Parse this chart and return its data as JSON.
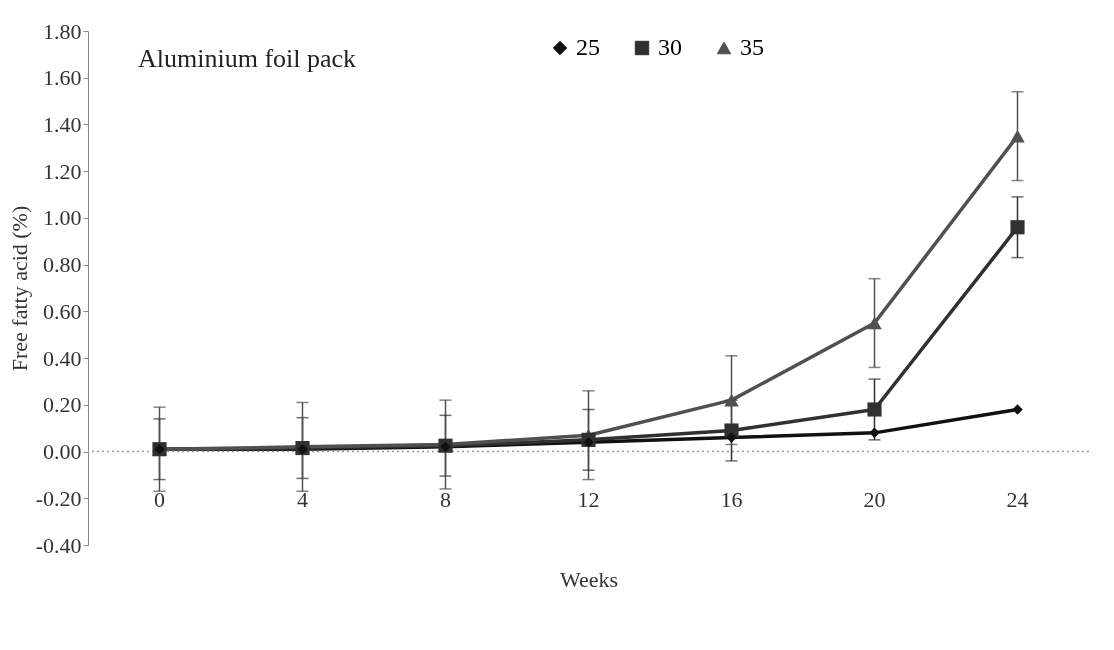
{
  "chart_data": {
    "type": "line",
    "annotations": [
      "Aluminium  foil pack"
    ],
    "xlabel": "Weeks",
    "ylabel": "Free fatty acid (%)",
    "categories": [
      "0",
      "4",
      "8",
      "12",
      "16",
      "20",
      "24"
    ],
    "series": [
      {
        "name": "25",
        "color": "#111111",
        "marker": "diamond",
        "values": [
          0.01,
          0.01,
          0.02,
          0.04,
          0.06,
          0.08,
          0.18
        ]
      },
      {
        "name": "30",
        "color": "#303030",
        "marker": "square",
        "values": [
          0.01,
          0.015,
          0.025,
          0.05,
          0.09,
          0.18,
          0.96
        ],
        "errors": [
          0.13,
          0.13,
          0.13,
          0.13,
          0.13,
          0.13,
          0.13
        ]
      },
      {
        "name": "35",
        "color": "#505050",
        "marker": "triangle",
        "values": [
          0.01,
          0.02,
          0.03,
          0.07,
          0.22,
          0.55,
          1.35
        ],
        "errors": [
          0.18,
          0.19,
          0.19,
          0.19,
          0.19,
          0.19,
          0.19
        ]
      }
    ],
    "ylim": [
      -0.4,
      1.8
    ],
    "yticks": [
      {
        "value": -0.4,
        "label": "-0.40"
      },
      {
        "value": -0.2,
        "label": "-0.20"
      },
      {
        "value": 0,
        "label": "0.00"
      },
      {
        "value": 0.2,
        "label": "0.20"
      },
      {
        "value": 0.4,
        "label": "0.40"
      },
      {
        "value": 0.6,
        "label": "0.60"
      },
      {
        "value": 0.8,
        "label": "0.80"
      },
      {
        "value": 1,
        "label": "1.00"
      },
      {
        "value": 1.2,
        "label": "1.20"
      },
      {
        "value": 1.4,
        "label": "1.40"
      },
      {
        "value": 1.6,
        "label": "1.60"
      },
      {
        "value": 1.8,
        "label": "1.80"
      }
    ],
    "ref_lines": [
      {
        "axis": "y",
        "value": 0,
        "color": "#999999",
        "line_style": "dotted"
      }
    ],
    "legend": "top right",
    "line_style": "solid"
  }
}
